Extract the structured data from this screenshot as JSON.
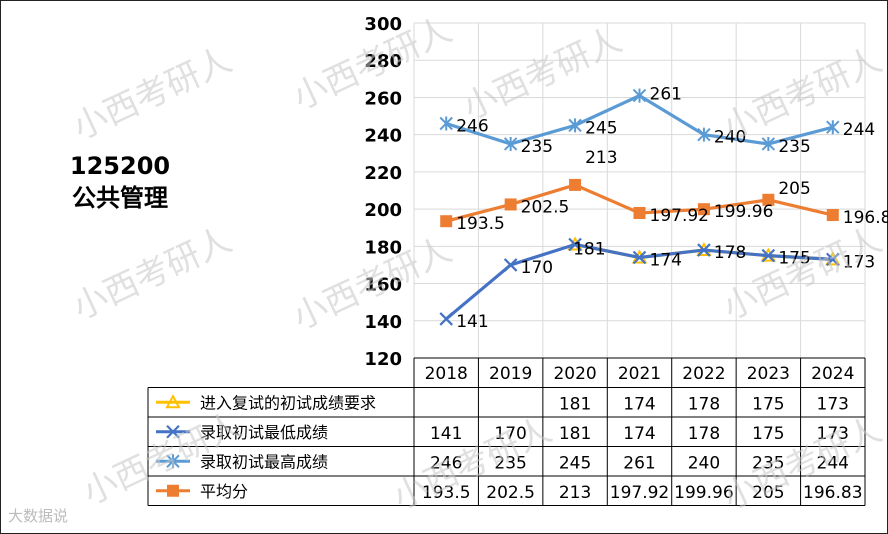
{
  "title": {
    "code": "125200",
    "name": "公共管理"
  },
  "watermark": "小西考研人",
  "footer_mark": "大数据说",
  "colors": {
    "yellow": "#FFC000",
    "darkblue": "#4472C4",
    "lightblue": "#5B9BD5",
    "orange": "#ED7D31"
  },
  "chart_data": {
    "type": "line",
    "categories": [
      "2018",
      "2019",
      "2020",
      "2021",
      "2022",
      "2023",
      "2024"
    ],
    "ylim": [
      120,
      300
    ],
    "yticks": [
      120,
      140,
      160,
      180,
      200,
      220,
      240,
      260,
      280,
      300
    ],
    "grid": true,
    "legend": "data-table",
    "series": [
      {
        "name": "进入复试的初试成绩要求",
        "color": "#FFC000",
        "marker": "triangle",
        "values": [
          null,
          null,
          181,
          174,
          178,
          175,
          173
        ],
        "labels": [
          "",
          "",
          "181",
          "174",
          "178",
          "175",
          "173"
        ]
      },
      {
        "name": "录取初试最低成绩",
        "color": "#4472C4",
        "marker": "x",
        "values": [
          141,
          170,
          181,
          174,
          178,
          175,
          173
        ],
        "labels": [
          "141",
          "170",
          "181",
          "174",
          "178",
          "175",
          "173"
        ]
      },
      {
        "name": "录取初试最高成绩",
        "color": "#5B9BD5",
        "marker": "star",
        "values": [
          246,
          235,
          245,
          261,
          240,
          235,
          244
        ],
        "labels": [
          "246",
          "235",
          "245",
          "261",
          "240",
          "235",
          "244"
        ]
      },
      {
        "name": "平均分",
        "color": "#ED7D31",
        "marker": "square",
        "values": [
          193.5,
          202.5,
          213,
          197.92,
          199.96,
          205,
          196.83
        ],
        "labels": [
          "193.5",
          "202.5",
          "213",
          "197.92",
          "199.96",
          "205",
          "196.83"
        ]
      }
    ]
  }
}
